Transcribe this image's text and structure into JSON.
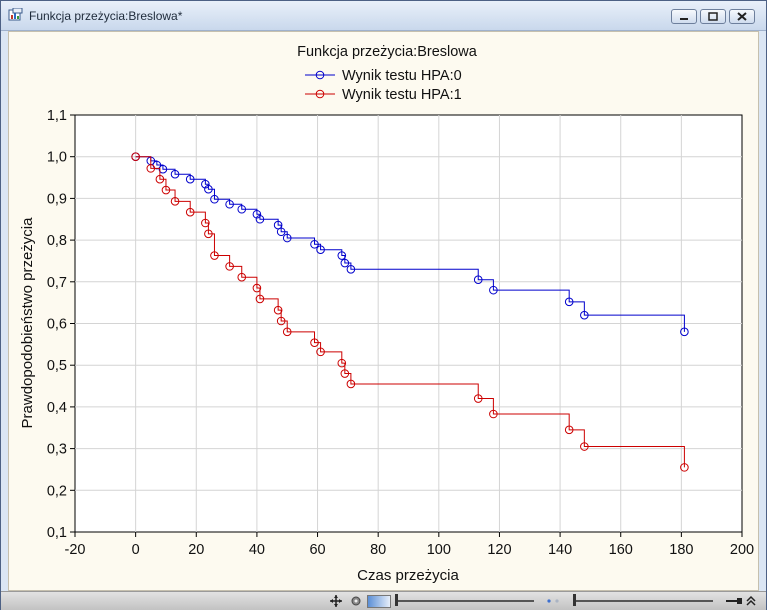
{
  "window": {
    "title": "Funkcja przeżycia:Breslowa*"
  },
  "chart_data": {
    "type": "line",
    "step": true,
    "title": "Funkcja przeżycia:Breslowa",
    "xlabel": "Czas przeżycia",
    "ylabel": "Prawdopodobieństwo przeżycia",
    "xlim": [
      -20,
      200
    ],
    "ylim": [
      0.1,
      1.1
    ],
    "xticks": [
      -20,
      0,
      20,
      40,
      60,
      80,
      100,
      120,
      140,
      160,
      180,
      200
    ],
    "xtick_labels": [
      "-20",
      "0",
      "20",
      "40",
      "60",
      "80",
      "100",
      "120",
      "140",
      "160",
      "180",
      "200"
    ],
    "yticks": [
      0.1,
      0.2,
      0.3,
      0.4,
      0.5,
      0.6,
      0.7,
      0.8,
      0.9,
      1.0,
      1.1
    ],
    "ytick_labels": [
      "0,1",
      "0,2",
      "0,3",
      "0,4",
      "0,5",
      "0,6",
      "0,7",
      "0,8",
      "0,9",
      "1,0",
      "1,1"
    ],
    "grid": true,
    "legend": "top-center",
    "series": [
      {
        "name": "Wynik testu HPA:0",
        "color": "#0000cc",
        "points": [
          [
            0,
            1.0
          ],
          [
            5,
            0.99
          ],
          [
            7,
            0.98
          ],
          [
            9,
            0.97
          ],
          [
            13,
            0.958
          ],
          [
            18,
            0.946
          ],
          [
            23,
            0.934
          ],
          [
            24,
            0.922
          ],
          [
            26,
            0.898
          ],
          [
            31,
            0.886
          ],
          [
            35,
            0.874
          ],
          [
            40,
            0.862
          ],
          [
            41,
            0.85
          ],
          [
            47,
            0.836
          ],
          [
            48,
            0.82
          ],
          [
            50,
            0.805
          ],
          [
            59,
            0.79
          ],
          [
            61,
            0.777
          ],
          [
            68,
            0.763
          ],
          [
            69,
            0.745
          ],
          [
            71,
            0.73
          ],
          [
            113,
            0.705
          ],
          [
            118,
            0.68
          ],
          [
            143,
            0.652
          ],
          [
            148,
            0.62
          ],
          [
            181,
            0.58
          ]
        ]
      },
      {
        "name": "Wynik testu HPA:1",
        "color": "#cc0000",
        "points": [
          [
            0,
            1.0
          ],
          [
            5,
            0.972
          ],
          [
            8,
            0.946
          ],
          [
            10,
            0.92
          ],
          [
            13,
            0.893
          ],
          [
            18,
            0.867
          ],
          [
            23,
            0.841
          ],
          [
            24,
            0.815
          ],
          [
            26,
            0.763
          ],
          [
            31,
            0.737
          ],
          [
            35,
            0.711
          ],
          [
            40,
            0.685
          ],
          [
            41,
            0.659
          ],
          [
            47,
            0.632
          ],
          [
            48,
            0.606
          ],
          [
            50,
            0.58
          ],
          [
            59,
            0.554
          ],
          [
            61,
            0.532
          ],
          [
            68,
            0.505
          ],
          [
            69,
            0.48
          ],
          [
            71,
            0.455
          ],
          [
            113,
            0.42
          ],
          [
            118,
            0.383
          ],
          [
            143,
            0.345
          ],
          [
            148,
            0.305
          ],
          [
            181,
            0.255
          ]
        ]
      }
    ]
  }
}
